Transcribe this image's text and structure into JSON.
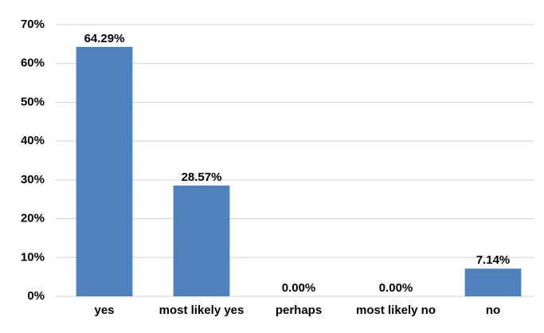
{
  "chart_data": {
    "type": "bar",
    "categories": [
      "yes",
      "most likely yes",
      "perhaps",
      "most likely no",
      "no"
    ],
    "values": [
      64.29,
      28.57,
      0,
      0,
      7.14
    ],
    "value_labels": [
      "64.29%",
      "28.57%",
      "0.00%",
      "0.00%",
      "7.14%"
    ],
    "color": "#4f81bd",
    "ylim": [
      0,
      70
    ],
    "yticks": [
      {
        "value": 0,
        "label": "0%"
      },
      {
        "value": 10,
        "label": "10%"
      },
      {
        "value": 20,
        "label": "20%"
      },
      {
        "value": 30,
        "label": "30%"
      },
      {
        "value": 40,
        "label": "40%"
      },
      {
        "value": 50,
        "label": "50%"
      },
      {
        "value": 60,
        "label": "60%"
      },
      {
        "value": 70,
        "label": "70%"
      }
    ],
    "grid": true
  }
}
